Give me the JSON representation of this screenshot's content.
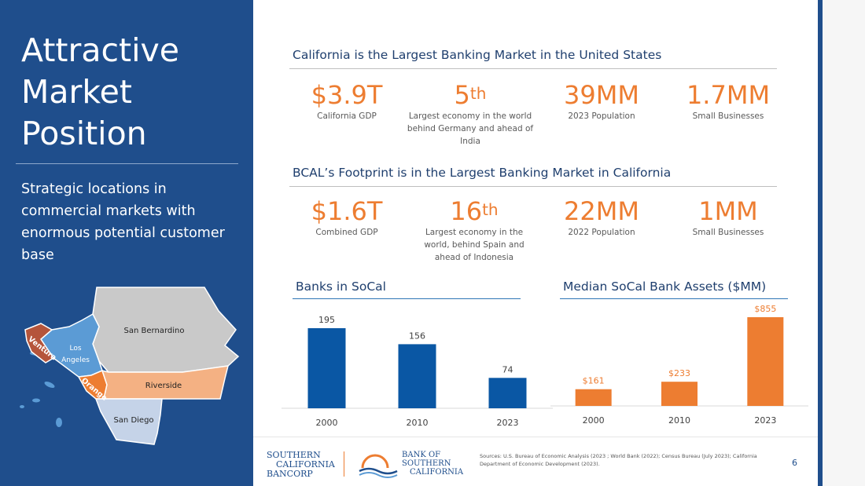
{
  "slide": {
    "title_lines": [
      "Attractive",
      "Market",
      "Position"
    ],
    "subtitle": "Strategic locations in commercial markets with enormous potential customer base",
    "page_number": "6"
  },
  "map": {
    "counties": [
      "San Bernardino",
      "Los Angeles",
      "Ventura",
      "Orange",
      "Riverside",
      "San Diego"
    ],
    "labels": {
      "san_bernardino": "San Bernardino",
      "los": "Los",
      "angeles": "Angeles",
      "ventura": "Ventura",
      "orange": "Orange",
      "riverside": "Riverside",
      "san_diego": "San Diego"
    },
    "colors": {
      "san_bernardino": "#c9c9c9",
      "los_angeles": "#5b9bd5",
      "ventura": "#b5553b",
      "orange": "#ed7d31",
      "riverside": "#f4b183",
      "san_diego": "#c5d3e8"
    }
  },
  "section1": {
    "title": "California is the Largest Banking Market in the United States",
    "stats": [
      {
        "value": "$3.9T",
        "sup": "",
        "label": "California GDP"
      },
      {
        "value": "5",
        "sup": "th",
        "label": "Largest economy in the world behind Germany and ahead of India"
      },
      {
        "value": "39MM",
        "sup": "",
        "label": "2023 Population"
      },
      {
        "value": "1.7MM",
        "sup": "",
        "label": "Small Businesses"
      }
    ]
  },
  "section2": {
    "title": "BCAL’s Footprint is in the Largest Banking Market in California",
    "stats": [
      {
        "value": "$1.6T",
        "sup": "",
        "label": "Combined GDP"
      },
      {
        "value": "16",
        "sup": "th",
        "label": "Largest economy in the world, behind Spain and ahead of Indonesia"
      },
      {
        "value": "22MM",
        "sup": "",
        "label": "2022 Population"
      },
      {
        "value": "1MM",
        "sup": "",
        "label": "Small Businesses"
      }
    ]
  },
  "chart_data": [
    {
      "type": "bar",
      "title": "Banks in SoCal",
      "categories": [
        "2000",
        "2010",
        "2023"
      ],
      "values": [
        195,
        156,
        74
      ],
      "data_labels": [
        "195",
        "156",
        "74"
      ],
      "color": "#0a57a4",
      "ylim": [
        0,
        195
      ],
      "grid": false
    },
    {
      "type": "bar",
      "title": "Median SoCal Bank Assets ($MM)",
      "categories": [
        "2000",
        "2010",
        "2023"
      ],
      "values": [
        161,
        233,
        855
      ],
      "data_labels": [
        "$161",
        "$233",
        "$855"
      ],
      "color": "#ed7d31",
      "ylim": [
        0,
        855
      ],
      "grid": false
    }
  ],
  "footer": {
    "scb_logo": [
      "SOUTHERN",
      "CALIFORNIA",
      "BANCORP"
    ],
    "bank_logo": [
      "BANK OF",
      "SOUTHERN",
      "CALIFORNIA"
    ],
    "sources": "Sources: U.S. Bureau of Economic Analysis (2023 ; World Bank (2022); Census Bureau (July 2023); California Department of Economic Development (2023)."
  },
  "colors": {
    "navy": "#1f4e8c",
    "accent": "#ed7d31",
    "bar_blue": "#0a57a4"
  }
}
